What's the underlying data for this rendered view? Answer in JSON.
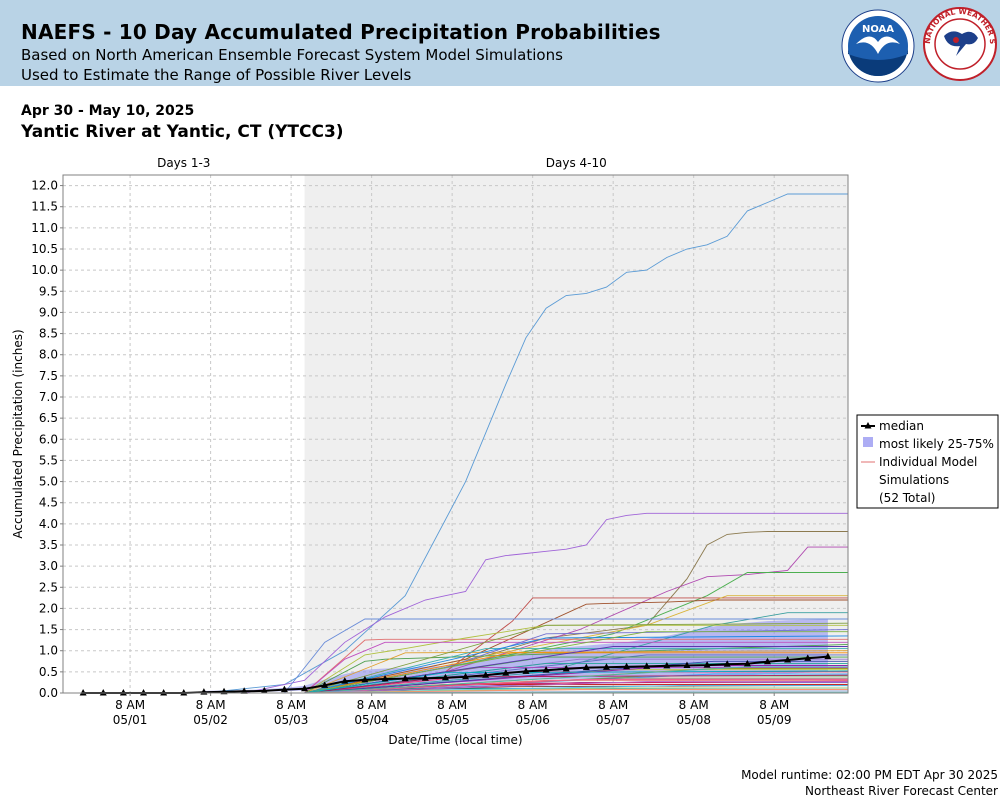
{
  "header": {
    "title": "NAEFS - 10 Day Accumulated Precipitation Probabilities",
    "subtitle_1": "Based on North American Ensemble Forecast System Model Simulations",
    "subtitle_2": "Used to Estimate the Range of Possible River Levels",
    "noaa_logo_text": "NOAA",
    "nws_logo_text": "NATIONAL WEATHER SERVICE"
  },
  "info": {
    "date_range": "Apr 30 - May 10, 2025",
    "station": "Yantic River at Yantic, CT (YTCC3)"
  },
  "footer": {
    "runtime": "Model runtime: 02:00 PM EDT Apr 30 2025",
    "center": "Northeast River Forecast Center"
  },
  "colors": {
    "header_bg": "#b9d3e6",
    "days_4_10_shading": "#efefef",
    "band_fill": "#8a8af0",
    "median": "#000000",
    "ensemble_line": "#e07070"
  },
  "chart_data": {
    "type": "line",
    "xlabel": "Date/Time (local time)",
    "ylabel": "Accumulated Precipitation (inches)",
    "ylim": [
      0,
      12.25
    ],
    "yticks": [
      "0.0",
      "0.5",
      "1.0",
      "1.5",
      "2.0",
      "2.5",
      "3.0",
      "3.5",
      "4.0",
      "4.5",
      "5.0",
      "5.5",
      "6.0",
      "6.5",
      "7.0",
      "7.5",
      "8.0",
      "8.5",
      "9.0",
      "9.5",
      "10.0",
      "10.5",
      "11.0",
      "11.5",
      "12.0"
    ],
    "xticks": [
      {
        "time": "8 AM",
        "date": "05/01",
        "hours": 26
      },
      {
        "time": "8 AM",
        "date": "05/02",
        "hours": 50
      },
      {
        "time": "8 AM",
        "date": "05/03",
        "hours": 74
      },
      {
        "time": "8 AM",
        "date": "05/04",
        "hours": 98
      },
      {
        "time": "8 AM",
        "date": "05/05",
        "hours": 122
      },
      {
        "time": "8 AM",
        "date": "05/06",
        "hours": 146
      },
      {
        "time": "8 AM",
        "date": "05/07",
        "hours": 170
      },
      {
        "time": "8 AM",
        "date": "05/08",
        "hours": 194
      },
      {
        "time": "8 AM",
        "date": "05/09",
        "hours": 218
      }
    ],
    "x_range_hours": [
      6,
      240
    ],
    "x_origin": "Apr 30 2025 00:00 local",
    "grid": true,
    "period_labels": [
      {
        "label": "Days 1-3",
        "from": 6,
        "to": 78
      },
      {
        "label": "Days 4-10",
        "from": 78,
        "to": 240
      }
    ],
    "legend": {
      "placement": "right",
      "median": "median",
      "band": "most likely 25-75%",
      "individual_1": "Individual Model",
      "individual_2": "Simulations",
      "individual_3": "(52 Total)"
    },
    "median": {
      "name": "median",
      "x": [
        12,
        18,
        24,
        30,
        36,
        42,
        48,
        54,
        60,
        66,
        72,
        78,
        84,
        90,
        96,
        102,
        108,
        114,
        120,
        126,
        132,
        138,
        144,
        150,
        156,
        162,
        168,
        174,
        180,
        186,
        192,
        198,
        204,
        210,
        216,
        222,
        228,
        234
      ],
      "y": [
        0,
        0,
        0,
        0,
        0,
        0,
        0.02,
        0.03,
        0.04,
        0.05,
        0.08,
        0.1,
        0.18,
        0.28,
        0.31,
        0.33,
        0.34,
        0.35,
        0.36,
        0.38,
        0.42,
        0.47,
        0.51,
        0.54,
        0.57,
        0.6,
        0.61,
        0.62,
        0.63,
        0.64,
        0.65,
        0.66,
        0.68,
        0.69,
        0.74,
        0.78,
        0.82,
        0.86
      ]
    },
    "band_25_75": {
      "name": "most likely 25-75%",
      "x": [
        48,
        54,
        60,
        66,
        72,
        78,
        84,
        90,
        96,
        102,
        108,
        114,
        120,
        126,
        132,
        138,
        144,
        150,
        156,
        162,
        168,
        174,
        180,
        186,
        192,
        198,
        204,
        210,
        216,
        222,
        228,
        234
      ],
      "low": [
        0.01,
        0.02,
        0.02,
        0.03,
        0.04,
        0.06,
        0.12,
        0.17,
        0.2,
        0.22,
        0.23,
        0.23,
        0.24,
        0.25,
        0.27,
        0.29,
        0.31,
        0.32,
        0.33,
        0.34,
        0.35,
        0.36,
        0.37,
        0.38,
        0.39,
        0.4,
        0.41,
        0.42,
        0.44,
        0.46,
        0.48,
        0.5
      ],
      "high": [
        0.05,
        0.06,
        0.07,
        0.09,
        0.12,
        0.17,
        0.32,
        0.45,
        0.55,
        0.58,
        0.6,
        0.62,
        0.64,
        0.72,
        0.82,
        0.9,
        0.98,
        1.02,
        1.08,
        1.12,
        1.16,
        1.2,
        1.28,
        1.35,
        1.45,
        1.55,
        1.62,
        1.66,
        1.7,
        1.72,
        1.73,
        1.74
      ]
    },
    "series": [
      {
        "color": "#5b9bd5",
        "x": [
          48,
          72,
          90,
          108,
          126,
          138,
          144,
          150,
          156,
          162,
          168,
          174,
          180,
          186,
          192,
          198,
          204,
          210,
          216,
          222,
          228,
          234,
          240
        ],
        "y": [
          0,
          0.2,
          1.0,
          2.3,
          5.0,
          7.3,
          8.4,
          9.1,
          9.4,
          9.45,
          9.6,
          9.95,
          10.0,
          10.3,
          10.5,
          10.6,
          10.8,
          11.4,
          11.6,
          11.8,
          11.8,
          11.8,
          11.8
        ]
      },
      {
        "color": "#a064d8",
        "x": [
          60,
          78,
          90,
          102,
          114,
          120,
          126,
          132,
          138,
          144,
          150,
          156,
          162,
          168,
          174,
          180,
          186,
          192,
          198,
          204,
          210,
          216,
          222,
          228,
          234,
          240
        ],
        "y": [
          0,
          0.3,
          1.2,
          1.8,
          2.2,
          2.3,
          2.4,
          3.15,
          3.25,
          3.3,
          3.35,
          3.4,
          3.5,
          4.1,
          4.2,
          4.25,
          4.25,
          4.25,
          4.25,
          4.25,
          4.25,
          4.25,
          4.25,
          4.25,
          4.25,
          4.25
        ]
      },
      {
        "color": "#8c7a4f",
        "x": [
          78,
          120,
          150,
          180,
          192,
          198,
          204,
          210,
          216,
          222,
          228,
          234,
          240
        ],
        "y": [
          0,
          0.6,
          1.3,
          1.6,
          2.7,
          3.5,
          3.75,
          3.8,
          3.82,
          3.82,
          3.82,
          3.82,
          3.82
        ]
      },
      {
        "color": "#b04ab0",
        "x": [
          78,
          120,
          160,
          186,
          198,
          210,
          222,
          228,
          234,
          240
        ],
        "y": [
          0,
          0.5,
          1.5,
          2.4,
          2.75,
          2.8,
          2.9,
          3.45,
          3.45,
          3.45
        ]
      },
      {
        "color": "#4caf50",
        "x": [
          78,
          120,
          170,
          198,
          210,
          222,
          240
        ],
        "y": [
          0,
          0.6,
          1.4,
          2.3,
          2.85,
          2.85,
          2.85
        ]
      },
      {
        "color": "#c0504d",
        "x": [
          78,
          120,
          140,
          146,
          150,
          168,
          174,
          240
        ],
        "y": [
          0,
          0.5,
          1.7,
          2.25,
          2.25,
          2.25,
          2.25,
          2.25
        ]
      },
      {
        "color": "#d9b43a",
        "x": [
          78,
          120,
          180,
          204,
          210,
          240
        ],
        "y": [
          0,
          0.7,
          1.6,
          2.3,
          2.3,
          2.3
        ]
      },
      {
        "color": "#a0522d",
        "x": [
          78,
          126,
          162,
          168,
          186,
          200,
          210,
          222,
          240
        ],
        "y": [
          0,
          0.8,
          2.1,
          2.12,
          2.15,
          2.2,
          2.2,
          2.2,
          2.2
        ]
      },
      {
        "color": "#3aa0a0",
        "x": [
          78,
          150,
          200,
          222,
          240
        ],
        "y": [
          0,
          0.5,
          1.6,
          1.9,
          1.9
        ]
      },
      {
        "color": "#e07070",
        "x": [
          78,
          96,
          102,
          240
        ],
        "y": [
          0,
          1.25,
          1.27,
          1.27
        ]
      },
      {
        "color": "#6a8cd8",
        "x": [
          72,
          84,
          96,
          240
        ],
        "y": [
          0,
          1.2,
          1.75,
          1.75
        ]
      },
      {
        "color": "#b0c040",
        "x": [
          78,
          96,
          108,
          126,
          150,
          240
        ],
        "y": [
          0,
          0.9,
          1.05,
          1.3,
          1.6,
          1.6
        ]
      },
      {
        "color": "#c050c0",
        "x": [
          78,
          90,
          102,
          240
        ],
        "y": [
          0,
          0.8,
          1.2,
          1.2
        ]
      },
      {
        "color": "#50a050",
        "x": [
          78,
          96,
          102,
          240
        ],
        "y": [
          0,
          0.75,
          0.8,
          1.15
        ]
      },
      {
        "color": "#e0a030",
        "x": [
          78,
          108,
          240
        ],
        "y": [
          0,
          0.95,
          1.0
        ]
      },
      {
        "color": "#7070d0",
        "x": [
          78,
          120,
          150,
          240
        ],
        "y": [
          0,
          0.6,
          1.4,
          1.5
        ]
      },
      {
        "color": "#40b0b0",
        "x": [
          78,
          132,
          240
        ],
        "y": [
          0,
          1.05,
          1.05
        ]
      },
      {
        "color": "#80a040",
        "x": [
          78,
          150,
          240
        ],
        "y": [
          0,
          1.6,
          1.65
        ]
      },
      {
        "color": "#5c6bc0",
        "x": [
          78,
          180,
          240
        ],
        "y": [
          0,
          0.9,
          0.9
        ]
      },
      {
        "color": "#9575cd",
        "x": [
          78,
          160,
          240
        ],
        "y": [
          0,
          0.8,
          0.8
        ]
      },
      {
        "color": "#26a69a",
        "x": [
          78,
          150,
          240
        ],
        "y": [
          0,
          0.7,
          0.7
        ]
      },
      {
        "color": "#ab47bc",
        "x": [
          78,
          130,
          240
        ],
        "y": [
          0,
          0.6,
          0.6
        ]
      },
      {
        "color": "#ec407a",
        "x": [
          78,
          140,
          240
        ],
        "y": [
          0,
          0.5,
          0.5
        ]
      },
      {
        "color": "#42a5f5",
        "x": [
          78,
          200,
          240
        ],
        "y": [
          0,
          0.45,
          0.45
        ]
      },
      {
        "color": "#66bb6a",
        "x": [
          78,
          180,
          240
        ],
        "y": [
          0,
          0.4,
          0.4
        ]
      },
      {
        "color": "#8d6e63",
        "x": [
          78,
          170,
          240
        ],
        "y": [
          0,
          0.35,
          0.35
        ]
      },
      {
        "color": "#e57373",
        "x": [
          78,
          150,
          240
        ],
        "y": [
          0,
          0.3,
          0.3
        ]
      },
      {
        "color": "#7e57c2",
        "x": [
          78,
          160,
          240
        ],
        "y": [
          0,
          0.25,
          0.25
        ]
      },
      {
        "color": "#c62828",
        "x": [
          78,
          120,
          240
        ],
        "y": [
          0,
          0.2,
          0.2
        ]
      },
      {
        "color": "#d81b60",
        "x": [
          78,
          130,
          240
        ],
        "y": [
          0,
          0.22,
          0.28
        ]
      },
      {
        "color": "#6d4c41",
        "x": [
          78,
          140,
          240
        ],
        "y": [
          0,
          0.15,
          0.18
        ]
      },
      {
        "color": "#00897b",
        "x": [
          78,
          110,
          240
        ],
        "y": [
          0,
          0.1,
          0.12
        ]
      },
      {
        "color": "#c0ca33",
        "x": [
          78,
          170,
          240
        ],
        "y": [
          0,
          0.55,
          0.55
        ]
      },
      {
        "color": "#8e24aa",
        "x": [
          78,
          190,
          240
        ],
        "y": [
          0,
          0.65,
          0.65
        ]
      },
      {
        "color": "#3949ab",
        "x": [
          78,
          200,
          240
        ],
        "y": [
          0,
          0.75,
          0.75
        ]
      },
      {
        "color": "#43a047",
        "x": [
          78,
          150,
          240
        ],
        "y": [
          0,
          0.85,
          0.85
        ]
      },
      {
        "color": "#fb8c00",
        "x": [
          78,
          140,
          240
        ],
        "y": [
          0,
          0.95,
          0.95
        ]
      },
      {
        "color": "#5e35b1",
        "x": [
          78,
          170,
          240
        ],
        "y": [
          0,
          1.1,
          1.1
        ]
      },
      {
        "color": "#1e88e5",
        "x": [
          78,
          150,
          240
        ],
        "y": [
          0,
          1.3,
          1.35
        ]
      },
      {
        "color": "#7cb342",
        "x": [
          78,
          180,
          240
        ],
        "y": [
          0,
          1.45,
          1.45
        ]
      },
      {
        "color": "#ad1457",
        "x": [
          78,
          120,
          240
        ],
        "y": [
          0,
          0.38,
          0.42
        ]
      },
      {
        "color": "#00acc1",
        "x": [
          78,
          120,
          240
        ],
        "y": [
          0,
          0.48,
          0.52
        ]
      },
      {
        "color": "#9e9d24",
        "x": [
          78,
          200,
          240
        ],
        "y": [
          0,
          0.58,
          0.58
        ]
      },
      {
        "color": "#f06292",
        "x": [
          78,
          160,
          240
        ],
        "y": [
          0,
          0.32,
          0.32
        ]
      },
      {
        "color": "#4db6ac",
        "x": [
          78,
          210,
          240
        ],
        "y": [
          0,
          0.62,
          0.62
        ]
      },
      {
        "color": "#ba68c8",
        "x": [
          78,
          180,
          240
        ],
        "y": [
          0,
          0.27,
          0.27
        ]
      },
      {
        "color": "#4fc3f7",
        "x": [
          78,
          190,
          240
        ],
        "y": [
          0,
          0.18,
          0.18
        ]
      },
      {
        "color": "#aed581",
        "x": [
          78,
          170,
          240
        ],
        "y": [
          0,
          0.12,
          0.12
        ]
      },
      {
        "color": "#ff8a65",
        "x": [
          78,
          160,
          240
        ],
        "y": [
          0,
          0.08,
          0.08
        ]
      },
      {
        "color": "#9fa8da",
        "x": [
          78,
          200,
          240
        ],
        "y": [
          0,
          0.05,
          0.05
        ]
      },
      {
        "color": "#80cbc4",
        "x": [
          78,
          150,
          240
        ],
        "y": [
          0,
          0.02,
          0.02
        ]
      },
      {
        "color": "#ce93d8",
        "x": [
          78,
          140,
          240
        ],
        "y": [
          0,
          0.0,
          0.0
        ]
      }
    ]
  }
}
